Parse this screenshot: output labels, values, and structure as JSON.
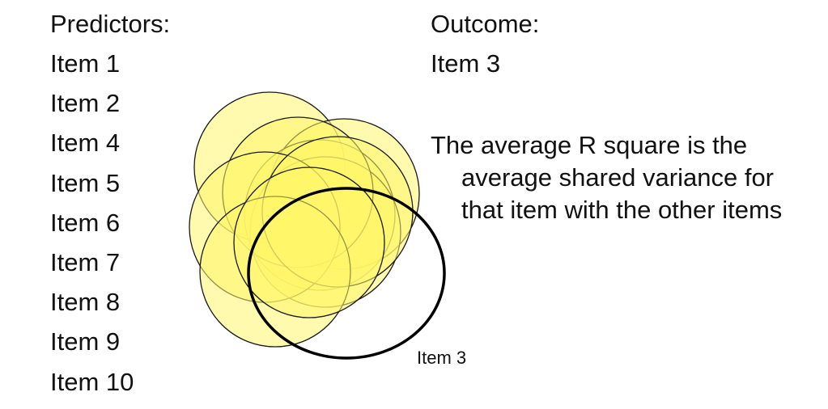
{
  "predictors": {
    "heading": "Predictors:",
    "items": [
      "Item 1",
      "Item 2",
      "Item 4",
      "Item 5",
      "Item 6",
      "Item 7",
      "Item 8",
      "Item 9",
      "Item 10"
    ]
  },
  "outcome": {
    "heading": "Outcome:",
    "item": "Item 3"
  },
  "explanation": "The average R square is the average shared variance for that item with the other items",
  "venn": {
    "outcome_label": "Item 3",
    "predictor_fill": "#fff56a",
    "predictor_stroke": "#1a1a1a",
    "outcome_stroke": "#000000"
  }
}
